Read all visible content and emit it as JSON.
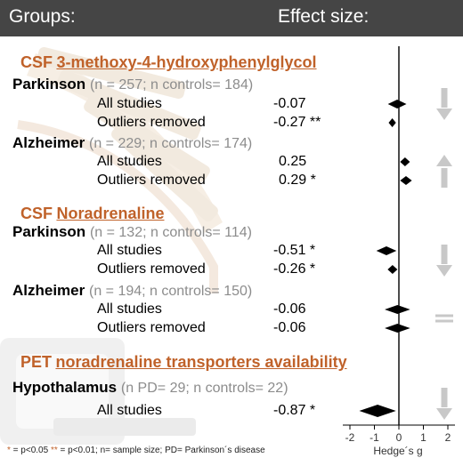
{
  "header": {
    "left": "Groups:",
    "right": "Effect size:"
  },
  "sections": [
    {
      "prefix": "CSF",
      "title": "3-methoxy-4-hydroxyphenylglycol",
      "groups": [
        {
          "name": "Parkinson",
          "meta": "(n = 257; n controls= 184)",
          "rows": [
            {
              "label": "All studies",
              "value": "-0.07"
            },
            {
              "label": "Outliers removed",
              "value": "-0.27 **"
            }
          ]
        },
        {
          "name": "Alzheimer",
          "meta": "(n = 229; n controls= 174)",
          "rows": [
            {
              "label": "All studies",
              "value": "0.25"
            },
            {
              "label": "Outliers removed",
              "value": "0.29 *"
            }
          ]
        }
      ]
    },
    {
      "prefix": "CSF",
      "title": "Noradrenaline",
      "groups": [
        {
          "name": "Parkinson",
          "meta": "(n = 132; n controls= 114)",
          "rows": [
            {
              "label": "All studies",
              "value": "-0.51 *"
            },
            {
              "label": "Outliers removed",
              "value": "-0.26 *"
            }
          ]
        },
        {
          "name": "Alzheimer",
          "meta": "(n = 194; n controls= 150)",
          "rows": [
            {
              "label": "All studies",
              "value": "-0.06"
            },
            {
              "label": "Outliers removed",
              "value": "-0.06"
            }
          ]
        }
      ]
    },
    {
      "prefix": "PET",
      "title": "noradrenaline transporters availability",
      "groups": [
        {
          "name": "Hypothalamus",
          "meta": "(n PD= 29; n controls= 22)",
          "rows": [
            {
              "label": "All studies",
              "value": "-0.87 *"
            }
          ]
        }
      ]
    }
  ],
  "footnote": {
    "s1": "*",
    "t1": " = p<0.05 ",
    "s2": "**",
    "t2": " = p<0.01; n= sample size; PD= Parkinson´s disease"
  },
  "chart_data": {
    "type": "forest",
    "xlabel": "Hedge´s g",
    "xlim": [
      -2,
      2
    ],
    "xticks": [
      -2,
      -1,
      0,
      1,
      2
    ],
    "effects": [
      {
        "group": "CSF MHPG Parkinson",
        "label": "All studies",
        "value": -0.07,
        "ci": [
          -0.45,
          0.31
        ]
      },
      {
        "group": "CSF MHPG Parkinson",
        "label": "Outliers removed",
        "value": -0.27,
        "ci": [
          -0.42,
          -0.12
        ]
      },
      {
        "group": "CSF MHPG Alzheimer",
        "label": "All studies",
        "value": 0.25,
        "ci": [
          0.05,
          0.45
        ]
      },
      {
        "group": "CSF MHPG Alzheimer",
        "label": "Outliers removed",
        "value": 0.29,
        "ci": [
          0.05,
          0.53
        ]
      },
      {
        "group": "CSF Noradrenaline Parkinson",
        "label": "All studies",
        "value": -0.51,
        "ci": [
          -0.92,
          -0.1
        ]
      },
      {
        "group": "CSF Noradrenaline Parkinson",
        "label": "Outliers removed",
        "value": -0.26,
        "ci": [
          -0.46,
          -0.06
        ]
      },
      {
        "group": "CSF Noradrenaline Alzheimer",
        "label": "All studies",
        "value": -0.06,
        "ci": [
          -0.58,
          0.46
        ]
      },
      {
        "group": "CSF Noradrenaline Alzheimer",
        "label": "Outliers removed",
        "value": -0.06,
        "ci": [
          -0.58,
          0.46
        ]
      },
      {
        "group": "PET NET Hypothalamus",
        "label": "All studies",
        "value": -0.87,
        "ci": [
          -1.62,
          -0.12
        ]
      }
    ],
    "direction_markers": [
      "down",
      "up",
      "down",
      "equal",
      "down"
    ],
    "colors": {
      "header_bg": "#454545",
      "accent": "#c0622a",
      "marker": "#000000",
      "arrow": "#c8c8c8"
    }
  }
}
